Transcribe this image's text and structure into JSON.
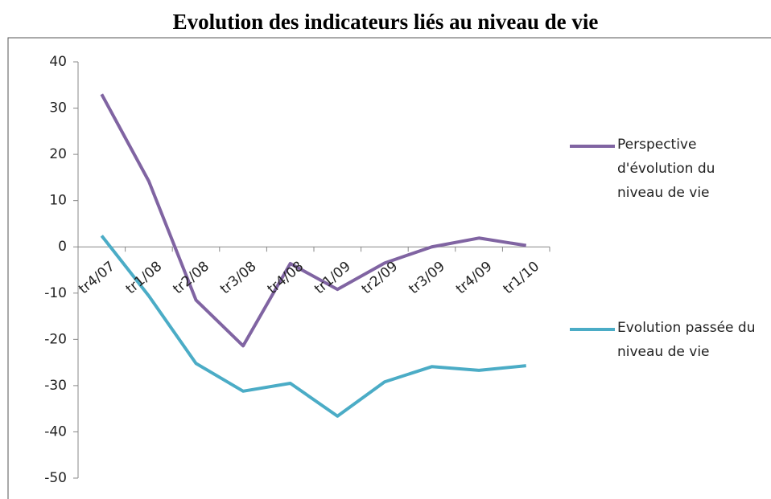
{
  "chart_data": {
    "type": "line",
    "title": "Evolution des indicateurs liés au niveau de vie",
    "categories": [
      "tr4/07",
      "tr1/08",
      "tr2/08",
      "tr3/08",
      "tr4/08",
      "tr1/09",
      "tr2/09",
      "tr3/09",
      "tr4/09",
      "tr1/10"
    ],
    "series": [
      {
        "name": "Perspective d'évolution du niveau de vie",
        "color": "#8064a2",
        "values": [
          33,
          14.2,
          -11.5,
          -21.4,
          -3.6,
          -9.2,
          -3.5,
          0,
          1.9,
          0.3
        ]
      },
      {
        "name": "Evolution passée du niveau de vie",
        "color": "#4bacc6",
        "values": [
          2.4,
          -10.6,
          -25.2,
          -31.2,
          -29.5,
          -36.6,
          -29.2,
          -25.9,
          -26.7,
          -25.7
        ]
      }
    ],
    "ylim": [
      -50,
      40
    ],
    "yticks": [
      -50,
      -40,
      -30,
      -20,
      -10,
      0,
      10,
      20,
      30,
      40
    ],
    "legend": "right"
  }
}
